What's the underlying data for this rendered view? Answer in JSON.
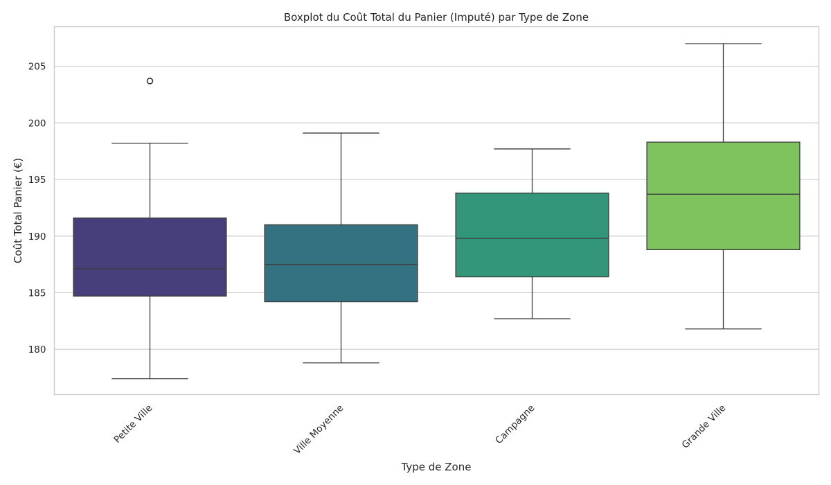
{
  "chart_data": {
    "type": "boxplot",
    "title": "Boxplot du Coût Total du Panier (Imputé) par Type de Zone",
    "xlabel": "Type de Zone",
    "ylabel": "Coût Total Panier (€)",
    "ylim": [
      176,
      208.5
    ],
    "yticks": [
      180,
      185,
      190,
      195,
      200,
      205
    ],
    "grid": true,
    "categories": [
      "Petite Ville",
      "Ville Moyenne",
      "Campagne",
      "Grande Ville"
    ],
    "boxes": [
      {
        "name": "Petite Ville",
        "whisker_low": 177.4,
        "q1": 184.7,
        "median": 187.1,
        "q3": 191.6,
        "whisker_high": 198.2,
        "outliers": [
          203.7
        ],
        "color": "#463f7c"
      },
      {
        "name": "Ville Moyenne",
        "whisker_low": 178.8,
        "q1": 184.2,
        "median": 187.5,
        "q3": 191.0,
        "whisker_high": 199.1,
        "outliers": [],
        "color": "#347282"
      },
      {
        "name": "Campagne",
        "whisker_low": 182.7,
        "q1": 186.4,
        "median": 189.8,
        "q3": 193.8,
        "whisker_high": 197.7,
        "outliers": [],
        "color": "#33967a"
      },
      {
        "name": "Grande Ville",
        "whisker_low": 181.8,
        "q1": 188.8,
        "median": 193.7,
        "q3": 198.3,
        "whisker_high": 207.0,
        "outliers": [],
        "color": "#7fc35f"
      }
    ]
  }
}
